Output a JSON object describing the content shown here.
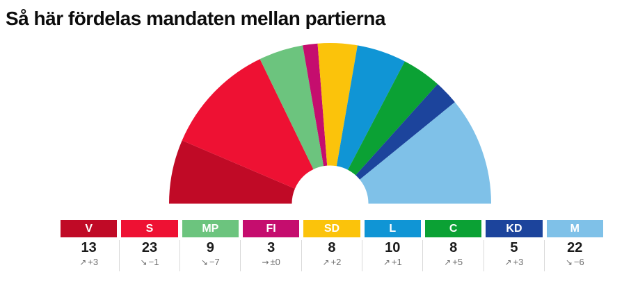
{
  "title": "Så här fördelas mandaten mellan partierna",
  "chart_data": {
    "type": "pie",
    "variant": "half-donut-parliament",
    "unit": "mandat (seats)",
    "total_seats": 101,
    "start_angle_deg": 180,
    "end_angle_deg": 0,
    "legend_position": "bottom",
    "parties": [
      {
        "abbr": "V",
        "seats": 13,
        "change": "+3",
        "direction": "up",
        "color": "#c00a26"
      },
      {
        "abbr": "S",
        "seats": 23,
        "change": "−1",
        "direction": "down",
        "color": "#ee1133"
      },
      {
        "abbr": "MP",
        "seats": 9,
        "change": "−7",
        "direction": "down",
        "color": "#6cc47e"
      },
      {
        "abbr": "FI",
        "seats": 3,
        "change": "±0",
        "direction": "same",
        "color": "#c50d6e"
      },
      {
        "abbr": "SD",
        "seats": 8,
        "change": "+2",
        "direction": "up",
        "color": "#fbc30b"
      },
      {
        "abbr": "L",
        "seats": 10,
        "change": "+1",
        "direction": "up",
        "color": "#1095d5"
      },
      {
        "abbr": "C",
        "seats": 8,
        "change": "+5",
        "direction": "up",
        "color": "#0ba134"
      },
      {
        "abbr": "KD",
        "seats": 5,
        "change": "+3",
        "direction": "up",
        "color": "#1c449c"
      },
      {
        "abbr": "M",
        "seats": 22,
        "change": "−6",
        "direction": "down",
        "color": "#7fc1e8"
      }
    ]
  },
  "icons": {
    "up": "↗",
    "down": "↘",
    "same": "→"
  },
  "colors": {
    "background": "#ffffff",
    "title_text": "#0c0c0c",
    "seat_number_text": "#1a1a1a",
    "change_text": "#6e6e6e",
    "divider": "#d9d9d9",
    "swatch_label_text": "#ffffff"
  }
}
